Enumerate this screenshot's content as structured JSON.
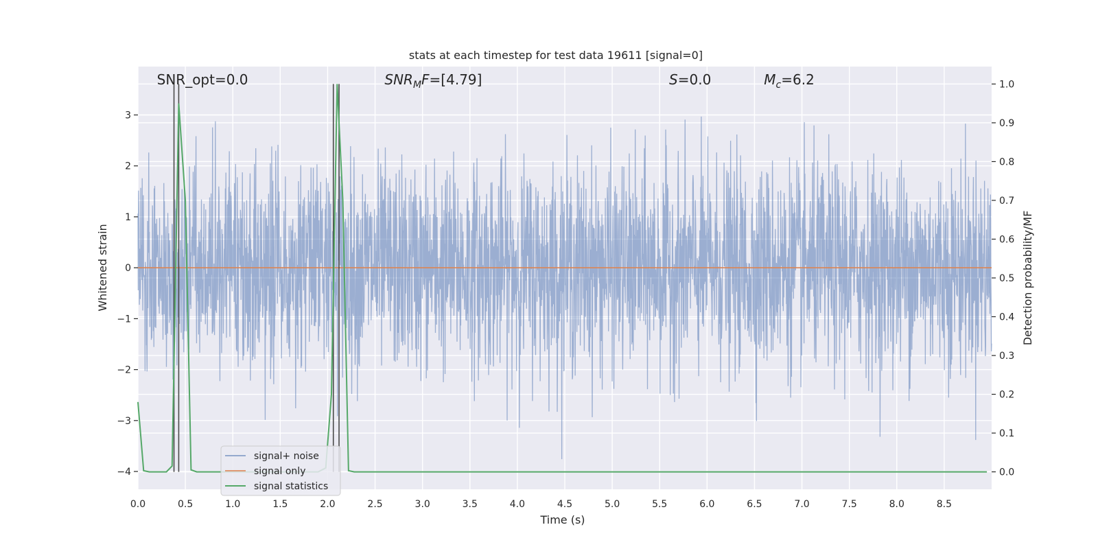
{
  "chart_data": {
    "type": "line",
    "title": "stats at each timestep for test data 19611 [signal=0]",
    "xlabel": "Time (s)",
    "ylabel_left": "Whitened strain",
    "ylabel_right": "Detection probability/MF",
    "xlim": [
      0.0,
      9.0
    ],
    "ylim_left": [
      -4.35,
      3.95
    ],
    "ylim_right": [
      -0.045,
      1.045
    ],
    "x_ticks": [
      0.0,
      0.5,
      1.0,
      1.5,
      2.0,
      2.5,
      3.0,
      3.5,
      4.0,
      4.5,
      5.0,
      5.5,
      6.0,
      6.5,
      7.0,
      7.5,
      8.0,
      8.5
    ],
    "x_tick_labels": [
      "0.0",
      "0.5",
      "1.0",
      "1.5",
      "2.0",
      "2.5",
      "3.0",
      "3.5",
      "4.0",
      "4.5",
      "5.0",
      "5.5",
      "6.0",
      "6.5",
      "7.0",
      "7.5",
      "8.0",
      "8.5"
    ],
    "y_left_ticks": [
      -4,
      -3,
      -2,
      -1,
      0,
      1,
      2,
      3
    ],
    "y_left_tick_labels": [
      "−4",
      "−3",
      "−2",
      "−1",
      "0",
      "1",
      "2",
      "3"
    ],
    "y_right_ticks": [
      0.0,
      0.1,
      0.2,
      0.3,
      0.4,
      0.5,
      0.6,
      0.7,
      0.8,
      0.9,
      1.0
    ],
    "y_right_tick_labels": [
      "0.0",
      "0.1",
      "0.2",
      "0.3",
      "0.4",
      "0.5",
      "0.6",
      "0.7",
      "0.8",
      "0.9",
      "1.0"
    ],
    "grid": true,
    "legend_position": "bottom-left",
    "background_color": "#eaeaf2",
    "annotations": [
      {
        "text": "SNR_opt=0.0",
        "x": 0.2
      },
      {
        "text": "SNR_MF=[4.79]",
        "x": 2.6
      },
      {
        "text": "S=0.0",
        "x": 5.6
      },
      {
        "text": "M_c=6.2",
        "x": 6.6
      }
    ],
    "vertical_markers": [
      0.38,
      0.43,
      2.06,
      2.12
    ],
    "series": [
      {
        "name": "signal+ noise",
        "axis": "left",
        "color": "#4c72b0",
        "note_values": "dense whitened noise, approx Gaussian with std 1, extremes ~ -4.0 to +3.5",
        "sigma": 1.0,
        "min": -4.0,
        "max": 3.5
      },
      {
        "name": "signal only",
        "axis": "left",
        "color": "#dd8452",
        "x": [
          0.0,
          9.0
        ],
        "y": [
          0.0,
          0.0
        ]
      },
      {
        "name": "signal statistics",
        "axis": "right",
        "color": "#55a868",
        "x": [
          0.0,
          0.06,
          0.12,
          0.18,
          0.24,
          0.3,
          0.36,
          0.43,
          0.5,
          0.56,
          0.62,
          0.68,
          1.0,
          1.5,
          1.9,
          1.98,
          2.04,
          2.1,
          2.16,
          2.22,
          2.28,
          2.5,
          3.0,
          4.0,
          5.0,
          6.0,
          7.0,
          8.0,
          8.95
        ],
        "y": [
          0.18,
          0.003,
          0.0,
          0.0,
          0.0,
          0.0,
          0.015,
          0.95,
          0.7,
          0.005,
          0.0,
          0.0,
          0.0,
          0.0,
          0.0,
          0.01,
          0.2,
          1.0,
          0.7,
          0.003,
          0.0,
          0.0,
          0.0,
          0.0,
          0.0,
          0.0,
          0.0,
          0.0,
          0.0
        ]
      }
    ]
  }
}
